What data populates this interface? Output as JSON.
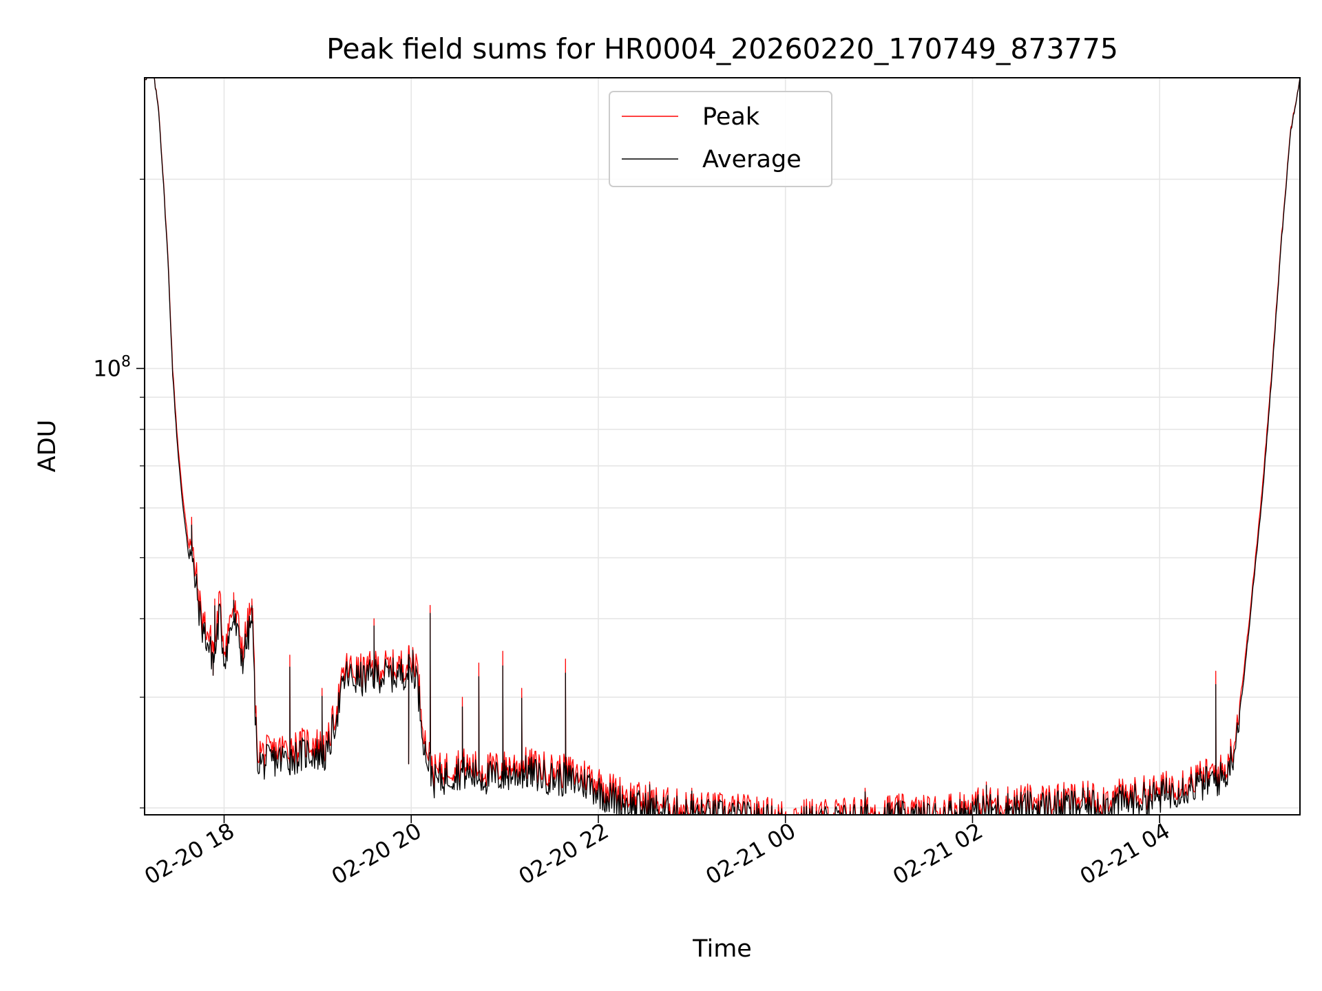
{
  "chart_data": {
    "type": "line",
    "title": "Peak field sums for HR0004_20260220_170749_873775",
    "xlabel": "Time",
    "ylabel": "ADU",
    "yscale": "log",
    "ylim": [
      19500000,
      290000000
    ],
    "xlim_hours_from_2026_02_20_00": [
      17.15,
      29.5
    ],
    "grid": true,
    "legend_position": "top-center",
    "x_ticks": [
      {
        "hour": 18,
        "label": "02-20 18"
      },
      {
        "hour": 20,
        "label": "02-20 20"
      },
      {
        "hour": 22,
        "label": "02-20 22"
      },
      {
        "hour": 24,
        "label": "02-21 00"
      },
      {
        "hour": 26,
        "label": "02-21 02"
      },
      {
        "hour": 28,
        "label": "02-21 04"
      }
    ],
    "y_major_ticks": [
      {
        "value": 100000000,
        "label_base": "10",
        "label_exp": "8"
      }
    ],
    "y_minor_ticks": [
      20000000,
      30000000,
      40000000,
      50000000,
      60000000,
      70000000,
      80000000,
      90000000,
      200000000
    ],
    "series": [
      {
        "name": "Peak",
        "color": "#ff0000",
        "x": [
          17.15,
          17.25,
          17.3,
          17.35,
          17.4,
          17.45,
          17.5,
          17.55,
          17.6,
          17.65,
          17.7,
          17.75,
          17.8,
          17.85,
          17.9,
          17.95,
          18.0,
          18.1,
          18.2,
          18.3,
          18.35,
          18.4,
          18.5,
          18.7,
          18.8,
          18.9,
          19.1,
          19.3,
          19.4,
          19.5,
          19.6,
          19.75,
          19.85,
          19.95,
          20.05,
          20.15,
          20.25,
          20.5,
          20.8,
          21.0,
          21.2,
          21.5,
          21.7,
          21.9,
          22.1,
          22.5,
          23.0,
          23.5,
          24.0,
          24.5,
          25.0,
          25.5,
          26.0,
          26.5,
          27.0,
          27.5,
          28.0,
          28.2,
          28.5,
          28.7,
          28.8,
          28.9,
          29.0,
          29.1,
          29.2,
          29.3,
          29.4,
          29.5
        ],
        "y": [
          290000000,
          290000000,
          260000000,
          200000000,
          150000000,
          100000000,
          78000000,
          64000000,
          56000000,
          52000000,
          47000000,
          41000000,
          39000000,
          37000000,
          36000000,
          43000000,
          36000000,
          42000000,
          36000000,
          42000000,
          25000000,
          24500000,
          24500000,
          25000000,
          25000000,
          25500000,
          25000000,
          33500000,
          33000000,
          33000000,
          33500000,
          33500000,
          33500000,
          34000000,
          34500000,
          25500000,
          22800000,
          23500000,
          23000000,
          23200000,
          23500000,
          23000000,
          22800000,
          22500000,
          21500000,
          20500000,
          20000000,
          19800000,
          19400000,
          19500000,
          19800000,
          19700000,
          20200000,
          20500000,
          20600000,
          20800000,
          21300000,
          22000000,
          22500000,
          23000000,
          25500000,
          33000000,
          46000000,
          65000000,
          100000000,
          160000000,
          240000000,
          290000000
        ]
      },
      {
        "name": "Average",
        "color": "#000000",
        "x": [
          17.15,
          17.25,
          17.3,
          17.35,
          17.4,
          17.45,
          17.5,
          17.55,
          17.6,
          17.65,
          17.7,
          17.75,
          17.8,
          17.85,
          17.9,
          17.95,
          18.0,
          18.1,
          18.2,
          18.3,
          18.35,
          18.4,
          18.5,
          18.7,
          18.8,
          18.9,
          19.1,
          19.3,
          19.4,
          19.5,
          19.6,
          19.75,
          19.85,
          19.95,
          20.05,
          20.15,
          20.25,
          20.5,
          20.8,
          21.0,
          21.2,
          21.5,
          21.7,
          21.9,
          22.1,
          22.5,
          23.0,
          23.5,
          24.0,
          24.5,
          25.0,
          25.5,
          26.0,
          26.5,
          27.0,
          27.5,
          28.0,
          28.2,
          28.5,
          28.7,
          28.8,
          28.9,
          29.0,
          29.1,
          29.2,
          29.3,
          29.4,
          29.5
        ],
        "y": [
          290000000,
          290000000,
          258000000,
          198000000,
          148000000,
          98000000,
          76000000,
          62000000,
          54000000,
          50000000,
          45000000,
          39500000,
          37500000,
          35500000,
          34500000,
          41000000,
          34500000,
          40000000,
          34500000,
          40000000,
          24000000,
          23500000,
          23800000,
          24000000,
          24200000,
          24500000,
          24200000,
          32500000,
          32000000,
          32000000,
          32500000,
          32500000,
          32500000,
          33000000,
          33000000,
          24500000,
          22000000,
          22800000,
          22300000,
          22500000,
          22800000,
          22300000,
          22100000,
          21800000,
          20800000,
          19900000,
          19500000,
          19300000,
          18900000,
          19000000,
          19300000,
          19200000,
          19700000,
          20000000,
          20100000,
          20300000,
          20800000,
          21400000,
          21900000,
          22400000,
          24800000,
          32000000,
          45000000,
          63000000,
          98000000,
          158000000,
          238000000,
          290000000
        ]
      }
    ],
    "spikes": [
      {
        "hour": 17.65,
        "peak": 58000000,
        "base": 47000000
      },
      {
        "hour": 17.9,
        "peak": 43000000,
        "base": 36000000
      },
      {
        "hour": 18.1,
        "peak": 44000000,
        "base": 36000000
      },
      {
        "hour": 18.3,
        "peak": 43000000,
        "base": 36000000
      },
      {
        "hour": 18.7,
        "peak": 35000000,
        "base": 25000000
      },
      {
        "hour": 19.05,
        "peak": 31000000,
        "base": 25000000
      },
      {
        "hour": 19.6,
        "peak": 40000000,
        "base": 33000000
      },
      {
        "hour": 20.02,
        "peak": 36000000,
        "base": 33500000
      },
      {
        "hour": 20.2,
        "peak": 42000000,
        "base": 34000000
      },
      {
        "hour": 20.55,
        "peak": 30000000,
        "base": 23000000
      },
      {
        "hour": 20.72,
        "peak": 34000000,
        "base": 23000000
      },
      {
        "hour": 20.98,
        "peak": 35500000,
        "base": 23200000
      },
      {
        "hour": 21.18,
        "peak": 31000000,
        "base": 23500000
      },
      {
        "hour": 21.65,
        "peak": 34500000,
        "base": 23000000
      },
      {
        "hour": 22.55,
        "peak": 22000000,
        "base": 20500000
      },
      {
        "hour": 23.0,
        "peak": 21500000,
        "base": 20000000
      },
      {
        "hour": 24.85,
        "peak": 21500000,
        "base": 19600000
      },
      {
        "hour": 26.15,
        "peak": 22000000,
        "base": 20200000
      },
      {
        "hour": 27.0,
        "peak": 21200000,
        "base": 20600000
      },
      {
        "hour": 28.6,
        "peak": 33000000,
        "base": 22500000
      },
      {
        "hour": 28.75,
        "peak": 24000000,
        "base": 22700000
      }
    ],
    "dips": [
      {
        "hour": 17.88,
        "value": 32500000
      },
      {
        "hour": 19.97,
        "value": 23500000
      }
    ]
  }
}
